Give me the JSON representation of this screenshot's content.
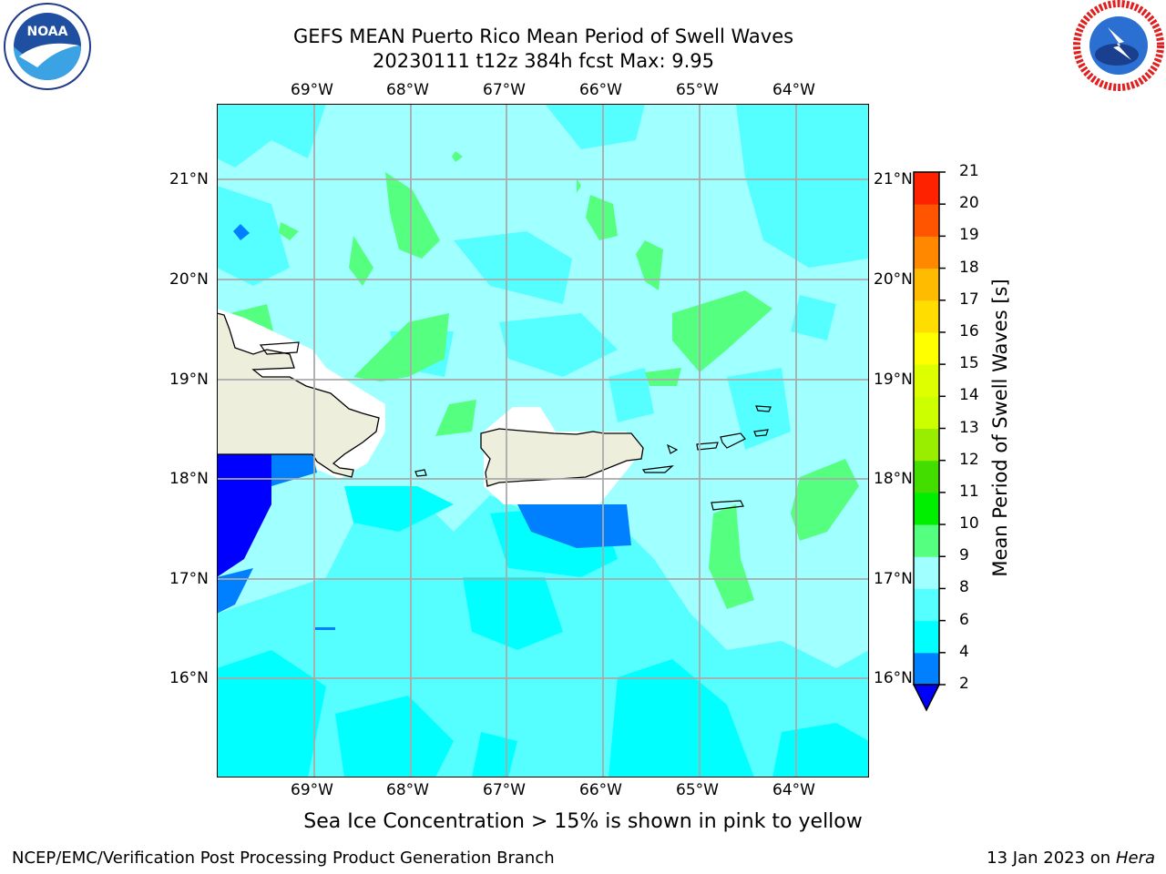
{
  "header": {
    "title_line1": "GEFS MEAN Puerto Rico Mean Period of Swell Waves",
    "title_line2": "20230111 t12z 384h fcst   Max: 9.95"
  },
  "logos": {
    "left": {
      "name": "NOAA",
      "ring_text": "NATIONAL OCEANIC AND ATMOSPHERIC ADMINISTRATION · U.S. DEPARTMENT OF COMMERCE"
    },
    "right": {
      "name": "NATIONAL WEATHER SERVICE"
    }
  },
  "map": {
    "lon_labels_top": [
      "69°W",
      "68°W",
      "67°W",
      "66°W",
      "65°W",
      "64°W"
    ],
    "lon_labels_bottom": [
      "69°W",
      "68°W",
      "67°W",
      "66°W",
      "65°W",
      "64°W"
    ],
    "lat_labels_left": [
      "21°N",
      "20°N",
      "19°N",
      "18°N",
      "17°N",
      "16°N"
    ],
    "lat_labels_right": [
      "21°N",
      "20°N",
      "19°N",
      "18°N",
      "17°N",
      "16°N"
    ],
    "land_color": "#eeeedd",
    "grid_color": "#aaaaaa"
  },
  "colorbar": {
    "title": "Mean Period of Swell Waves [s]",
    "tick_labels": [
      "2",
      "4",
      "6",
      "8",
      "9",
      "10",
      "11",
      "12",
      "13",
      "14",
      "15",
      "16",
      "17",
      "18",
      "19",
      "20",
      "21"
    ],
    "colors": [
      "#0080ff",
      "#00ffff",
      "#55ffff",
      "#a0ffff",
      "#55ff80",
      "#00ee00",
      "#44dd00",
      "#99ee00",
      "#ccff00",
      "#ddff00",
      "#ffff00",
      "#ffdd00",
      "#ffbb00",
      "#ff8800",
      "#ff5500",
      "#ff2200"
    ],
    "extend_color": "#0000ff"
  },
  "note": "Sea Ice Concentration > 15% is shown in pink to yellow",
  "footer": {
    "left": "NCEP/EMC/Verification Post Processing Product Generation Branch",
    "right_date": "13 Jan 2023 on",
    "right_host": "Hera"
  }
}
